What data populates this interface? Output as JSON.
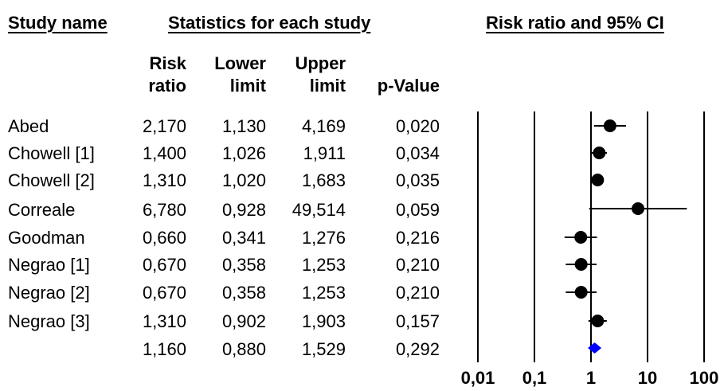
{
  "headers": {
    "study_name": "Study name",
    "statistics": "Statistics for each study",
    "plot": "Risk ratio and 95% CI"
  },
  "columns": {
    "rr": [
      "Risk",
      "ratio"
    ],
    "lower": [
      "Lower",
      "limit"
    ],
    "upper": [
      "Upper",
      "limit"
    ],
    "p": [
      "",
      "p-Value"
    ]
  },
  "rows": [
    {
      "name": "Abed",
      "rr": "2,170",
      "lower": "1,130",
      "upper": "4,169",
      "p": "0,020"
    },
    {
      "name": "Chowell [1]",
      "rr": "1,400",
      "lower": "1,026",
      "upper": "1,911",
      "p": "0,034"
    },
    {
      "name": "Chowell [2]",
      "rr": "1,310",
      "lower": "1,020",
      "upper": "1,683",
      "p": "0,035"
    },
    {
      "name": "Correale",
      "rr": "6,780",
      "lower": "0,928",
      "upper": "49,514",
      "p": "0,059"
    },
    {
      "name": "Goodman",
      "rr": "0,660",
      "lower": "0,341",
      "upper": "1,276",
      "p": "0,216"
    },
    {
      "name": "Negrao [1]",
      "rr": "0,670",
      "lower": "0,358",
      "upper": "1,253",
      "p": "0,210"
    },
    {
      "name": "Negrao [2]",
      "rr": "0,670",
      "lower": "0,358",
      "upper": "1,253",
      "p": "0,210"
    },
    {
      "name": "Negrao [3]",
      "rr": "1,310",
      "lower": "0,902",
      "upper": "1,903",
      "p": "0,157"
    },
    {
      "name": "",
      "rr": "1,160",
      "lower": "0,880",
      "upper": "1,529",
      "p": "0,292"
    }
  ],
  "chart_data": {
    "type": "forest",
    "scale": "log",
    "xlim": [
      0.01,
      100
    ],
    "ticks": [
      0.01,
      0.1,
      1,
      10,
      100
    ],
    "tick_labels": [
      "0,01",
      "0,1",
      "1",
      "10",
      "100"
    ],
    "studies": [
      {
        "name": "Abed",
        "rr": 2.17,
        "lower": 1.13,
        "upper": 4.169
      },
      {
        "name": "Chowell [1]",
        "rr": 1.4,
        "lower": 1.026,
        "upper": 1.911
      },
      {
        "name": "Chowell [2]",
        "rr": 1.31,
        "lower": 1.02,
        "upper": 1.683
      },
      {
        "name": "Correale",
        "rr": 6.78,
        "lower": 0.928,
        "upper": 49.514
      },
      {
        "name": "Goodman",
        "rr": 0.66,
        "lower": 0.341,
        "upper": 1.276
      },
      {
        "name": "Negrao [1]",
        "rr": 0.67,
        "lower": 0.358,
        "upper": 1.253
      },
      {
        "name": "Negrao [2]",
        "rr": 0.67,
        "lower": 0.358,
        "upper": 1.253
      },
      {
        "name": "Negrao [3]",
        "rr": 1.31,
        "lower": 0.902,
        "upper": 1.903
      }
    ],
    "summary": {
      "rr": 1.16,
      "lower": 0.88,
      "upper": 1.529
    },
    "summary_color": "#0000ff",
    "marker_color": "#000000"
  }
}
